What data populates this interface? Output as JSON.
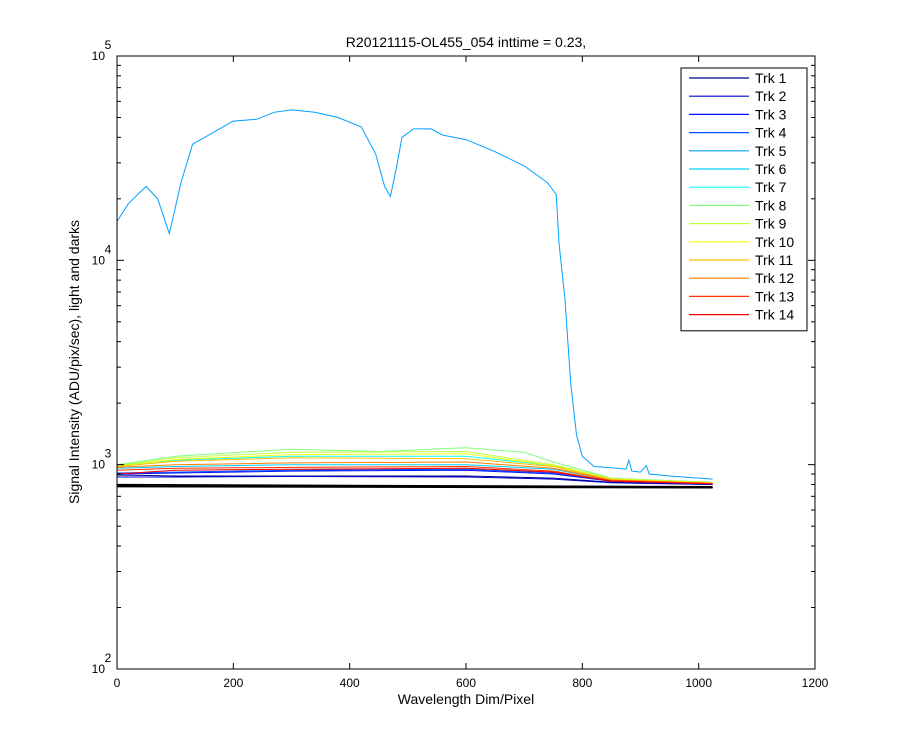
{
  "chart_data": {
    "type": "line",
    "title": "R20121115-OL455_054 inttime = 0.23,",
    "xlabel": "Wavelength Dim/Pixel",
    "ylabel": "Signal Intensity (ADU/pix/sec), light and darks",
    "xlim": [
      0,
      1200
    ],
    "ylim": [
      100,
      100000
    ],
    "yscale": "log",
    "x_ticks": [
      0,
      200,
      400,
      600,
      800,
      1000,
      1200
    ],
    "y_ticks": [
      {
        "value": 100,
        "base": "10",
        "exp": "2"
      },
      {
        "value": 1000,
        "base": "10",
        "exp": "3"
      },
      {
        "value": 10000,
        "base": "10",
        "exp": "4"
      },
      {
        "value": 100000,
        "base": "10",
        "exp": "5"
      }
    ],
    "grid": false,
    "legend_position": "top-right",
    "series": [
      {
        "name": "Trk 1",
        "color": "#00008f",
        "points": [
          [
            0,
            890
          ],
          [
            100,
            880
          ],
          [
            300,
            880
          ],
          [
            600,
            880
          ],
          [
            750,
            860
          ],
          [
            850,
            820
          ],
          [
            1024,
            800
          ]
        ]
      },
      {
        "name": "Trk 2",
        "color": "#0000cf",
        "points": [
          [
            0,
            870
          ],
          [
            100,
            870
          ],
          [
            300,
            875
          ],
          [
            600,
            870
          ],
          [
            750,
            850
          ],
          [
            850,
            815
          ],
          [
            1024,
            800
          ]
        ]
      },
      {
        "name": "Trk 3",
        "color": "#0010ff",
        "points": [
          [
            0,
            900
          ],
          [
            100,
            910
          ],
          [
            300,
            930
          ],
          [
            600,
            940
          ],
          [
            750,
            900
          ],
          [
            850,
            830
          ],
          [
            1024,
            805
          ]
        ]
      },
      {
        "name": "Trk 4",
        "color": "#0050ff",
        "points": [
          [
            0,
            910
          ],
          [
            100,
            920
          ],
          [
            300,
            940
          ],
          [
            600,
            950
          ],
          [
            750,
            910
          ],
          [
            850,
            830
          ],
          [
            1024,
            805
          ]
        ]
      },
      {
        "name": "Trk 5",
        "color": "#00a0ff",
        "points": [
          [
            0,
            15500
          ],
          [
            20,
            19000
          ],
          [
            50,
            23000
          ],
          [
            70,
            20000
          ],
          [
            90,
            13500
          ],
          [
            110,
            24000
          ],
          [
            130,
            37000
          ],
          [
            200,
            48000
          ],
          [
            240,
            49000
          ],
          [
            270,
            53000
          ],
          [
            300,
            54500
          ],
          [
            340,
            53000
          ],
          [
            380,
            50000
          ],
          [
            420,
            45000
          ],
          [
            445,
            33000
          ],
          [
            460,
            23000
          ],
          [
            470,
            20500
          ],
          [
            480,
            28000
          ],
          [
            490,
            40000
          ],
          [
            510,
            44000
          ],
          [
            540,
            44000
          ],
          [
            560,
            41000
          ],
          [
            600,
            39000
          ],
          [
            650,
            34000
          ],
          [
            700,
            29000
          ],
          [
            740,
            24000
          ],
          [
            755,
            21000
          ],
          [
            760,
            12000
          ],
          [
            770,
            6500
          ],
          [
            780,
            2500
          ],
          [
            790,
            1400
          ],
          [
            800,
            1100
          ],
          [
            820,
            980
          ],
          [
            860,
            960
          ],
          [
            875,
            950
          ],
          [
            880,
            1050
          ],
          [
            885,
            930
          ],
          [
            900,
            920
          ],
          [
            910,
            990
          ],
          [
            915,
            900
          ],
          [
            950,
            880
          ],
          [
            1024,
            850
          ]
        ]
      },
      {
        "name": "Trk 6",
        "color": "#00d0ff",
        "points": [
          [
            0,
            960
          ],
          [
            100,
            980
          ],
          [
            300,
            1000
          ],
          [
            600,
            1000
          ],
          [
            750,
            950
          ],
          [
            850,
            840
          ],
          [
            1024,
            810
          ]
        ]
      },
      {
        "name": "Trk 7",
        "color": "#10ffef",
        "points": [
          [
            0,
            990
          ],
          [
            100,
            1050
          ],
          [
            300,
            1100
          ],
          [
            600,
            1100
          ],
          [
            750,
            990
          ],
          [
            850,
            850
          ],
          [
            1024,
            815
          ]
        ]
      },
      {
        "name": "Trk 8",
        "color": "#80ff80",
        "points": [
          [
            0,
            1000
          ],
          [
            100,
            1100
          ],
          [
            300,
            1190
          ],
          [
            450,
            1160
          ],
          [
            600,
            1210
          ],
          [
            700,
            1150
          ],
          [
            750,
            1030
          ],
          [
            850,
            860
          ],
          [
            1024,
            820
          ]
        ]
      },
      {
        "name": "Trk 9",
        "color": "#c0ff40",
        "points": [
          [
            0,
            990
          ],
          [
            100,
            1080
          ],
          [
            300,
            1150
          ],
          [
            600,
            1160
          ],
          [
            750,
            1000
          ],
          [
            850,
            855
          ],
          [
            1024,
            815
          ]
        ]
      },
      {
        "name": "Trk 10",
        "color": "#f0ff10",
        "points": [
          [
            0,
            980
          ],
          [
            100,
            1060
          ],
          [
            300,
            1120
          ],
          [
            600,
            1130
          ],
          [
            750,
            990
          ],
          [
            850,
            850
          ],
          [
            1024,
            815
          ]
        ]
      },
      {
        "name": "Trk 11",
        "color": "#ffc000",
        "points": [
          [
            0,
            980
          ],
          [
            100,
            1040
          ],
          [
            300,
            1080
          ],
          [
            600,
            1070
          ],
          [
            750,
            980
          ],
          [
            850,
            845
          ],
          [
            1024,
            812
          ]
        ]
      },
      {
        "name": "Trk 12",
        "color": "#ff8000",
        "points": [
          [
            0,
            970
          ],
          [
            100,
            1000
          ],
          [
            300,
            1020
          ],
          [
            600,
            1030
          ],
          [
            750,
            960
          ],
          [
            850,
            840
          ],
          [
            1024,
            810
          ]
        ]
      },
      {
        "name": "Trk 13",
        "color": "#ff3000",
        "points": [
          [
            0,
            940
          ],
          [
            100,
            960
          ],
          [
            300,
            970
          ],
          [
            600,
            980
          ],
          [
            750,
            930
          ],
          [
            850,
            835
          ],
          [
            1024,
            808
          ]
        ]
      },
      {
        "name": "Trk 14",
        "color": "#ef0000",
        "points": [
          [
            0,
            900
          ],
          [
            100,
            940
          ],
          [
            300,
            950
          ],
          [
            600,
            960
          ],
          [
            750,
            920
          ],
          [
            850,
            830
          ],
          [
            1024,
            805
          ]
        ]
      }
    ],
    "dark_series": [
      {
        "color": "#000000",
        "points": [
          [
            0,
            800
          ],
          [
            1024,
            780
          ]
        ]
      },
      {
        "color": "#000000",
        "points": [
          [
            0,
            790
          ],
          [
            1024,
            775
          ]
        ]
      },
      {
        "color": "#000000",
        "points": [
          [
            0,
            785
          ],
          [
            1024,
            772
          ]
        ]
      },
      {
        "color": "#000000",
        "points": [
          [
            0,
            780
          ],
          [
            1024,
            770
          ]
        ]
      }
    ]
  }
}
